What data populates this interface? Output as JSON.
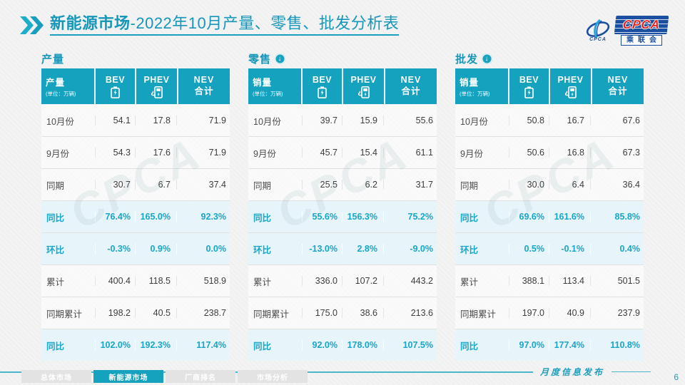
{
  "title": {
    "prefix": "新能源市场",
    "rest": "-2022年10月产量、零售、批发分析表"
  },
  "logo": {
    "emblem_text": "CPCA",
    "acronym": "CPCA",
    "chinese": "乘联会"
  },
  "watermark": {
    "text": "CPCA"
  },
  "colors": {
    "accent": "#14a2bf",
    "highlight_bg": "#e7f4f9",
    "highlight_text": "#18a6c9",
    "logo_blue": "#1b4f9f",
    "logo_red": "#e02724"
  },
  "tables": [
    {
      "section": "产量",
      "arrow": false,
      "header": {
        "label": "产量",
        "unit": "(单位：万辆)",
        "bev": "BEV",
        "phev": "PHEV",
        "nev_line1": "NEV",
        "nev_line2": "合计"
      },
      "rows": [
        {
          "label": "10月份",
          "bev": "54.1",
          "phev": "17.8",
          "nev": "71.9",
          "highlight": false
        },
        {
          "label": "9月份",
          "bev": "54.3",
          "phev": "17.6",
          "nev": "71.9",
          "highlight": false
        },
        {
          "label": "同期",
          "bev": "30.7",
          "phev": "6.7",
          "nev": "37.4",
          "highlight": false
        },
        {
          "label": "同比",
          "bev": "76.4%",
          "phev": "165.0%",
          "nev": "92.3%",
          "highlight": true
        },
        {
          "label": "环比",
          "bev": "-0.3%",
          "phev": "0.9%",
          "nev": "0.0%",
          "highlight": true
        },
        {
          "label": "累计",
          "bev": "400.4",
          "phev": "118.5",
          "nev": "518.9",
          "highlight": false
        },
        {
          "label": "同期累计",
          "bev": "198.2",
          "phev": "40.5",
          "nev": "238.7",
          "highlight": false
        },
        {
          "label": "同比",
          "bev": "102.0%",
          "phev": "192.3%",
          "nev": "117.4%",
          "highlight": true
        }
      ]
    },
    {
      "section": "零售",
      "arrow": true,
      "arrow_glyph": "↓",
      "header": {
        "label": "销量",
        "unit": "(单位：万辆)",
        "bev": "BEV",
        "phev": "PHEV",
        "nev_line1": "NEV",
        "nev_line2": "合计"
      },
      "rows": [
        {
          "label": "10月份",
          "bev": "39.7",
          "phev": "15.9",
          "nev": "55.6",
          "highlight": false
        },
        {
          "label": "9月份",
          "bev": "45.7",
          "phev": "15.4",
          "nev": "61.1",
          "highlight": false
        },
        {
          "label": "同期",
          "bev": "25.5",
          "phev": "6.2",
          "nev": "31.7",
          "highlight": false
        },
        {
          "label": "同比",
          "bev": "55.6%",
          "phev": "156.3%",
          "nev": "75.2%",
          "highlight": true
        },
        {
          "label": "环比",
          "bev": "-13.0%",
          "phev": "2.8%",
          "nev": "-9.0%",
          "highlight": true
        },
        {
          "label": "累计",
          "bev": "336.0",
          "phev": "107.2",
          "nev": "443.2",
          "highlight": false
        },
        {
          "label": "同期累计",
          "bev": "175.0",
          "phev": "38.6",
          "nev": "213.6",
          "highlight": false
        },
        {
          "label": "同比",
          "bev": "92.0%",
          "phev": "178.0%",
          "nev": "107.5%",
          "highlight": true
        }
      ]
    },
    {
      "section": "批发",
      "arrow": true,
      "arrow_glyph": "↓",
      "header": {
        "label": "销量",
        "unit": "(单位：万辆)",
        "bev": "BEV",
        "phev": "PHEV",
        "nev_line1": "NEV",
        "nev_line2": "合计"
      },
      "rows": [
        {
          "label": "10月份",
          "bev": "50.8",
          "phev": "16.7",
          "nev": "67.6",
          "highlight": false
        },
        {
          "label": "9月份",
          "bev": "50.6",
          "phev": "16.8",
          "nev": "67.3",
          "highlight": false
        },
        {
          "label": "同期",
          "bev": "30.0",
          "phev": "6.4",
          "nev": "36.4",
          "highlight": false
        },
        {
          "label": "同比",
          "bev": "69.6%",
          "phev": "161.6%",
          "nev": "85.8%",
          "highlight": true
        },
        {
          "label": "环比",
          "bev": "0.5%",
          "phev": "-0.1%",
          "nev": "0.4%",
          "highlight": true
        },
        {
          "label": "累计",
          "bev": "388.1",
          "phev": "113.4",
          "nev": "501.5",
          "highlight": false
        },
        {
          "label": "同期累计",
          "bev": "197.0",
          "phev": "40.9",
          "nev": "237.9",
          "highlight": false
        },
        {
          "label": "同比",
          "bev": "97.0%",
          "phev": "177.4%",
          "nev": "110.8%",
          "highlight": true
        }
      ]
    }
  ],
  "footer": {
    "tabs": [
      {
        "label": "总体市场",
        "active": false
      },
      {
        "label": "新能源市场",
        "active": true
      },
      {
        "label": "厂商排名",
        "active": false
      },
      {
        "label": "市场分析",
        "active": false
      }
    ],
    "publication": "月度信息发布",
    "page": "6"
  }
}
